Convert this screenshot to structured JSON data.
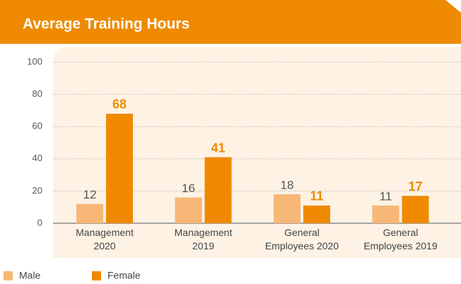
{
  "chart_data": {
    "type": "bar",
    "title": "Average Training Hours",
    "categories": [
      "Management\n2020",
      "Management\n2019",
      "General\nEmployees 2020",
      "General\nEmployees 2019"
    ],
    "series": [
      {
        "name": "Male",
        "color": "#f7b777",
        "values": [
          12,
          16,
          18,
          11
        ]
      },
      {
        "name": "Female",
        "color": "#ef8a00",
        "values": [
          68,
          41,
          11,
          17
        ]
      }
    ],
    "ylim": [
      0,
      100
    ],
    "yticks": [
      0,
      20,
      40,
      60,
      80,
      100
    ],
    "grid": true,
    "legend": "bottom-left"
  }
}
